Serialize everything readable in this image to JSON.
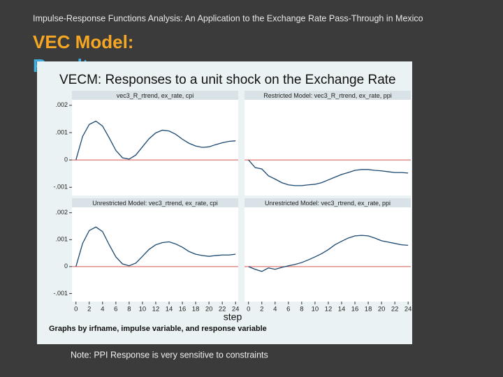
{
  "slide": {
    "header": "Impulse-Response Functions Analysis: An Application to the Exchange Rate Pass-Through in Mexico",
    "title": "VEC Model:",
    "title_line2": "Results",
    "footnote": "Note: PPI Response  is  very sensitive to constraints"
  },
  "figure": {
    "title": "VECM: Responses to a unit shock on the Exchange Rate",
    "xlabel": "step",
    "note": "Graphs by irfname, impulse variable, and response variable"
  },
  "chart_data": [
    {
      "type": "line",
      "title": "vec3_R_rtrend, ex_rate, cpi",
      "color": "#1a476f",
      "hline": 0,
      "hline_color": "#d9534f",
      "x": [
        0,
        1,
        2,
        3,
        4,
        5,
        6,
        7,
        8,
        9,
        10,
        11,
        12,
        13,
        14,
        15,
        16,
        17,
        18,
        19,
        20,
        21,
        22,
        23,
        24
      ],
      "values": [
        0,
        0.00086,
        0.0013,
        0.00142,
        0.00124,
        0.00081,
        0.00035,
        8e-05,
        3e-05,
        0.00018,
        0.00048,
        0.00078,
        0.00099,
        0.00109,
        0.00106,
        0.00094,
        0.00076,
        0.00061,
        0.00051,
        0.00046,
        0.00048,
        0.00056,
        0.00063,
        0.00068,
        0.0007
      ],
      "xlim": [
        -0.6,
        24.4
      ],
      "ylim": [
        -0.0013,
        0.0022
      ],
      "yticks": [
        {
          "value": 0.002,
          "label": ".002"
        },
        {
          "value": 0.001,
          "label": ".001"
        },
        0,
        {
          "value": -0.001,
          "label": "-.001"
        }
      ]
    },
    {
      "type": "line",
      "title": "Restricted Model: vec3_R_rtrend, ex_rate, ppi",
      "color": "#1a476f",
      "hline": 0,
      "hline_color": "#d9534f",
      "x": [
        0,
        1,
        2,
        3,
        4,
        5,
        6,
        7,
        8,
        9,
        10,
        11,
        12,
        13,
        14,
        15,
        16,
        17,
        18,
        19,
        20,
        21,
        22,
        23,
        24
      ],
      "values": [
        0,
        -0.00028,
        -0.00033,
        -0.00058,
        -0.0007,
        -0.00083,
        -0.00091,
        -0.00094,
        -0.00094,
        -0.00091,
        -0.00089,
        -0.00083,
        -0.00073,
        -0.00063,
        -0.00053,
        -0.00046,
        -0.00038,
        -0.00035,
        -0.00035,
        -0.00038,
        -0.0004,
        -0.00043,
        -0.00046,
        -0.00046,
        -0.00048
      ],
      "xlim": [
        -0.6,
        24.4
      ],
      "ylim": [
        -0.0013,
        0.0022
      ]
    },
    {
      "type": "line",
      "title": "Unrestricted Model: vec3_rtrend, ex_rate, cpi",
      "color": "#1a476f",
      "hline": 0,
      "hline_color": "#d9534f",
      "x": [
        0,
        1,
        2,
        3,
        4,
        5,
        6,
        7,
        8,
        9,
        10,
        11,
        12,
        13,
        14,
        15,
        16,
        17,
        18,
        19,
        20,
        21,
        22,
        23,
        24
      ],
      "values": [
        0,
        0.00086,
        0.00134,
        0.00147,
        0.0013,
        0.00081,
        0.00036,
        0.0001,
        3e-05,
        0.00013,
        0.00038,
        0.00064,
        0.00081,
        0.00089,
        0.00092,
        0.00084,
        0.00072,
        0.00056,
        0.00046,
        0.00041,
        0.00038,
        0.00041,
        0.00043,
        0.00043,
        0.00046
      ],
      "xlim": [
        -0.6,
        24.4
      ],
      "ylim": [
        -0.0013,
        0.0022
      ],
      "yticks": [
        {
          "value": 0.002,
          "label": ".002"
        },
        {
          "value": 0.001,
          "label": ".001"
        },
        0,
        {
          "value": -0.001,
          "label": "-.001"
        }
      ],
      "xticks": [
        0,
        2,
        4,
        6,
        8,
        10,
        12,
        14,
        16,
        18,
        20,
        22,
        24
      ]
    },
    {
      "type": "line",
      "title": "Unrestricted Model: vec3_rtrend, ex_rate, ppi",
      "color": "#1a476f",
      "hline": 0,
      "hline_color": "#d9534f",
      "x": [
        0,
        1,
        2,
        3,
        4,
        5,
        6,
        7,
        8,
        9,
        10,
        11,
        12,
        13,
        14,
        15,
        16,
        17,
        18,
        19,
        20,
        21,
        22,
        23,
        24
      ],
      "values": [
        0,
        -0.0001,
        -0.00018,
        -5e-05,
        -0.0001,
        -3e-05,
        3e-05,
        8e-05,
        0.00015,
        0.00025,
        0.00036,
        0.00048,
        0.00063,
        0.00081,
        0.00094,
        0.00106,
        0.00114,
        0.00116,
        0.00114,
        0.00106,
        0.00096,
        0.00091,
        0.00086,
        0.00081,
        0.00079
      ],
      "xlim": [
        -0.6,
        24.4
      ],
      "ylim": [
        -0.0013,
        0.0022
      ],
      "xticks": [
        0,
        2,
        4,
        6,
        8,
        10,
        12,
        14,
        16,
        18,
        20,
        22,
        24
      ]
    }
  ]
}
